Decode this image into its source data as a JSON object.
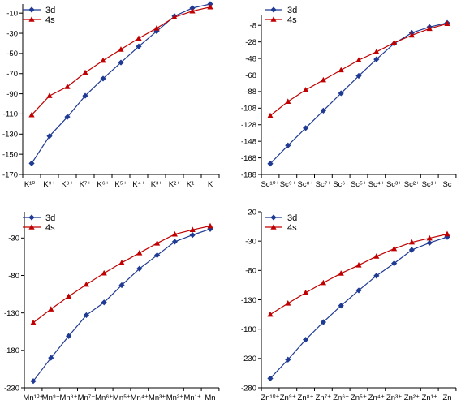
{
  "chart_data": [
    {
      "type": "line",
      "categories": [
        "K¹⁰⁺",
        "K⁹⁺",
        "K⁸⁺",
        "K⁷⁺",
        "K⁶⁺",
        "K⁵⁺",
        "K⁴⁺",
        "K³⁺",
        "K²⁺",
        "K¹⁺",
        "K"
      ],
      "yticks": [
        -170,
        -150,
        -130,
        -110,
        -90,
        -70,
        -50,
        -30,
        -10
      ],
      "ylim": [
        -170,
        -1
      ],
      "legend_position": "top-left",
      "grid": false,
      "series": [
        {
          "name": "3d",
          "color": "#1f3a93",
          "marker": "diamond",
          "values": [
            -159,
            -132,
            -113,
            -92,
            -75,
            -59,
            -43,
            -28,
            -13,
            -5,
            -1
          ]
        },
        {
          "name": "4s",
          "color": "#c00000",
          "marker": "triangle",
          "values": [
            -111,
            -92,
            -83,
            -69,
            -57,
            -46,
            -35,
            -25,
            -14,
            -8,
            -4
          ]
        }
      ]
    },
    {
      "type": "line",
      "categories": [
        "Sc¹⁰⁺",
        "Sc⁹⁺",
        "Sc⁸⁺",
        "Sc⁷⁺",
        "Sc⁶⁺",
        "Sc⁵⁺",
        "Sc⁴⁺",
        "Sc³⁺",
        "Sc²⁺",
        "Sc¹⁺",
        "Sc"
      ],
      "yticks": [
        -188,
        -168,
        -148,
        -128,
        -108,
        -88,
        -68,
        -48,
        -28,
        -8
      ],
      "ylim": [
        -188,
        4
      ],
      "legend_position": "top-left",
      "grid": false,
      "series": [
        {
          "name": "3d",
          "color": "#1f3a93",
          "marker": "diamond",
          "values": [
            -175,
            -153,
            -132,
            -111,
            -90,
            -69,
            -49,
            -30,
            -17,
            -10,
            -5
          ]
        },
        {
          "name": "4s",
          "color": "#c00000",
          "marker": "triangle",
          "values": [
            -117,
            -100,
            -86,
            -74,
            -62,
            -50,
            -40,
            -29,
            -20,
            -12,
            -6
          ]
        }
      ]
    },
    {
      "type": "line",
      "categories": [
        "Mn¹⁰⁺",
        "Mn⁹⁺",
        "Mn⁸⁺",
        "Mn⁷⁺",
        "Mn⁶⁺",
        "Mn⁵⁺",
        "Mn⁴⁺",
        "Mn³⁺",
        "Mn²⁺",
        "Mn¹⁺",
        "Mn"
      ],
      "yticks": [
        -230,
        -180,
        -130,
        -80,
        -30
      ],
      "ylim": [
        -230,
        5
      ],
      "legend_position": "top-left",
      "grid": false,
      "series": [
        {
          "name": "3d",
          "color": "#1f3a93",
          "marker": "diamond",
          "values": [
            -221,
            -190,
            -161,
            -133,
            -116,
            -93,
            -71,
            -53,
            -35,
            -26,
            -18
          ]
        },
        {
          "name": "4s",
          "color": "#c00000",
          "marker": "triangle",
          "values": [
            -143,
            -125,
            -108,
            -92,
            -77,
            -63,
            -50,
            -37,
            -25,
            -19,
            -14
          ]
        }
      ]
    },
    {
      "type": "line",
      "categories": [
        "Zn¹⁰⁺",
        "Zn⁹⁺",
        "Zn⁸⁺",
        "Zn⁷⁺",
        "Zn⁶⁺",
        "Zn⁵⁺",
        "Zn⁴⁺",
        "Zn³⁺",
        "Zn²⁺",
        "Zn¹⁺",
        "Zn"
      ],
      "yticks": [
        -280,
        -230,
        -180,
        -130,
        -80,
        -30,
        20
      ],
      "ylim": [
        -280,
        20
      ],
      "legend_position": "top-left",
      "grid": false,
      "series": [
        {
          "name": "3d",
          "color": "#1f3a93",
          "marker": "diamond",
          "values": [
            -264,
            -232,
            -198,
            -168,
            -140,
            -114,
            -89,
            -68,
            -45,
            -33,
            -23
          ]
        },
        {
          "name": "4s",
          "color": "#c00000",
          "marker": "triangle",
          "values": [
            -155,
            -136,
            -118,
            -101,
            -85,
            -71,
            -56,
            -43,
            -32,
            -25,
            -18
          ]
        }
      ]
    }
  ]
}
